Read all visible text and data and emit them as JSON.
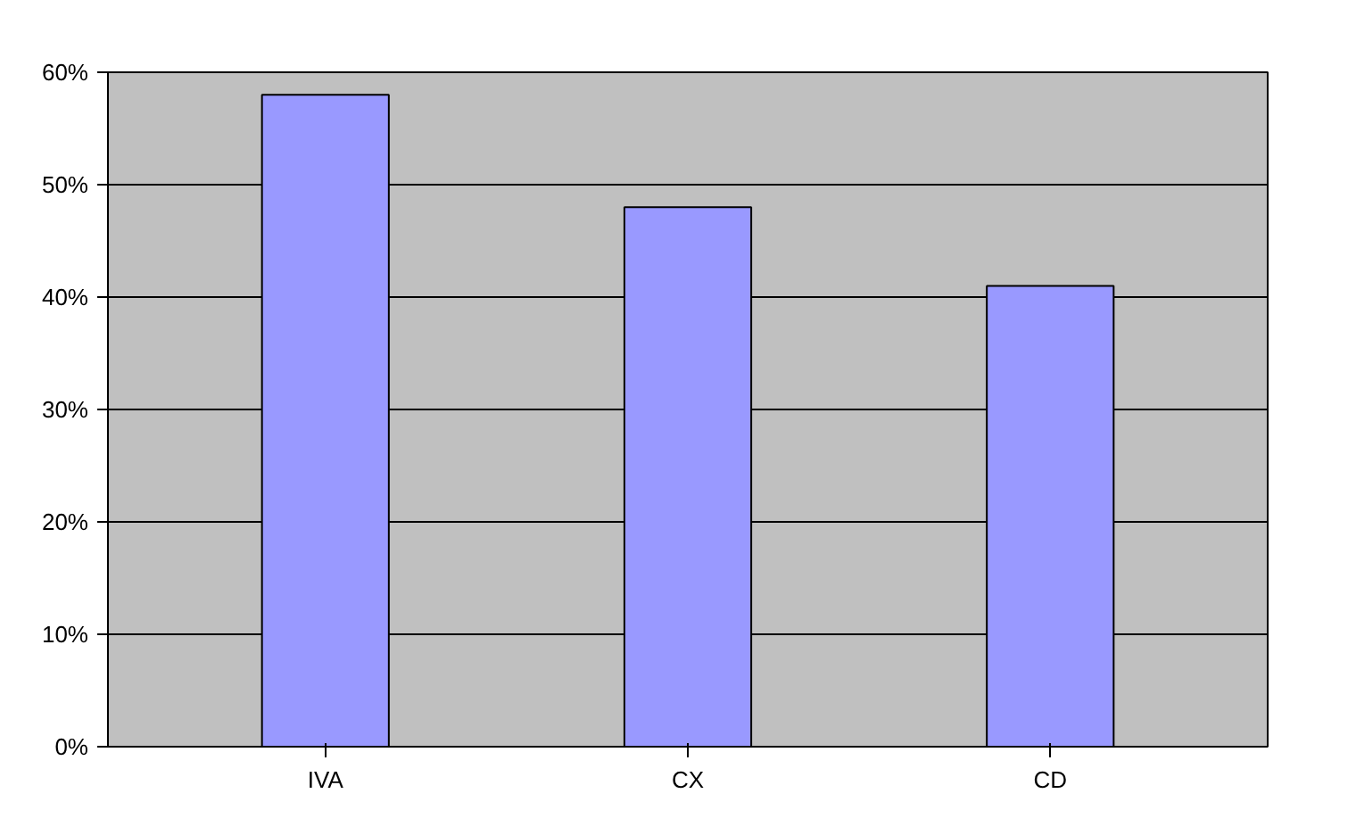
{
  "chart_data": {
    "type": "bar",
    "categories": [
      "IVA",
      "CX",
      "CD"
    ],
    "values": [
      58,
      48,
      41
    ],
    "color": "#9999ff",
    "ylim": [
      0,
      60
    ],
    "yticks": [
      {
        "value": 0,
        "label": "0%"
      },
      {
        "value": 10,
        "label": "10%"
      },
      {
        "value": 20,
        "label": "20%"
      },
      {
        "value": 30,
        "label": "30%"
      },
      {
        "value": 40,
        "label": "40%"
      },
      {
        "value": 50,
        "label": "50%"
      },
      {
        "value": 60,
        "label": "60%"
      }
    ],
    "grid": "y"
  }
}
